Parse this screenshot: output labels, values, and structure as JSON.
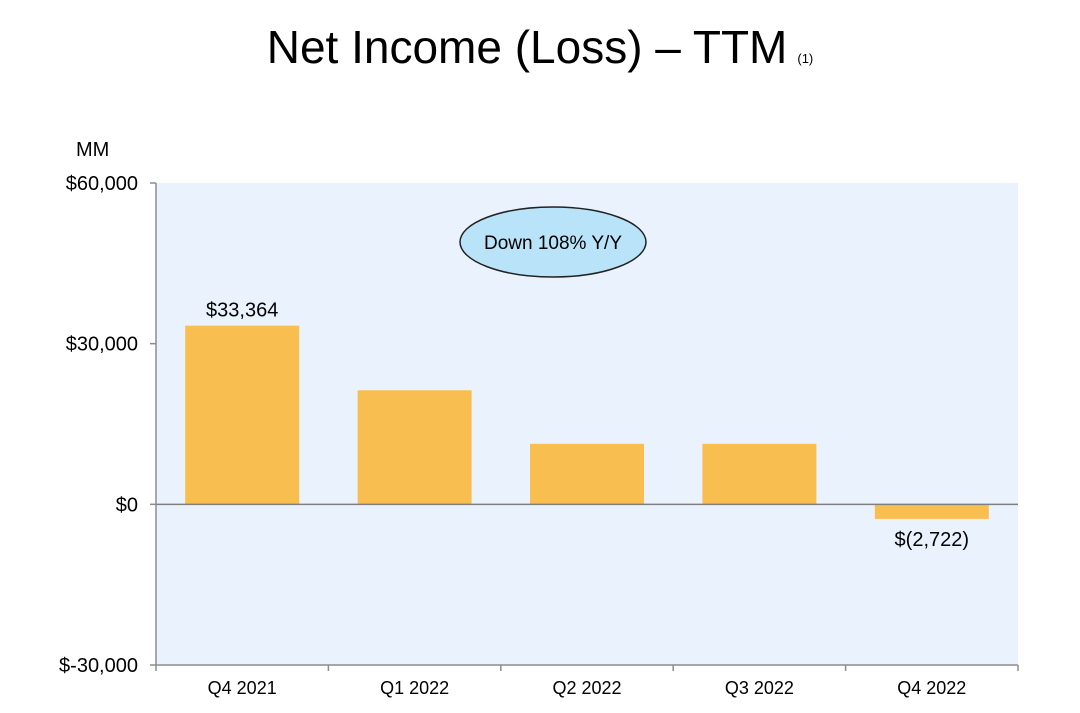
{
  "title": "Net Income (Loss) – TTM",
  "title_footnote": "(1)",
  "unit_label": "MM",
  "annotation": "Down 108% Y/Y",
  "colors": {
    "plot_background": "#eaf3fd",
    "bar": "#f8be50",
    "callout_fill": "#b9e3f8",
    "axis": "#8c8c8c",
    "zero_line": "#7f7f7f"
  },
  "chart_data": {
    "type": "bar",
    "categories": [
      "Q4 2021",
      "Q1 2022",
      "Q2 2022",
      "Q3 2022",
      "Q4 2022"
    ],
    "values": [
      33364,
      21300,
      11300,
      11300,
      -2722
    ],
    "data_labels": [
      "$33,364",
      "",
      "",
      "",
      "$(2,722)"
    ],
    "ylim": [
      -30000,
      60000
    ],
    "yticks": [
      60000,
      30000,
      0,
      -30000
    ],
    "ytick_labels": [
      "$60,000",
      "$30,000",
      "$0",
      "$-30,000"
    ],
    "xlabel": "",
    "ylabel": "",
    "grid": false,
    "legend": "none"
  }
}
